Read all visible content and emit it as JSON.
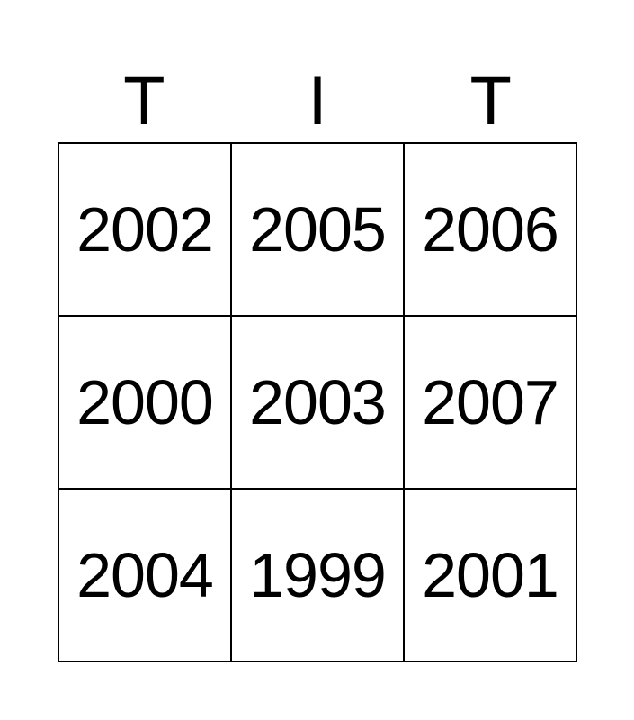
{
  "header": [
    "T",
    "I",
    "T"
  ],
  "cells": [
    [
      "2002",
      "2005",
      "2006"
    ],
    [
      "2000",
      "2003",
      "2007"
    ],
    [
      "2004",
      "1999",
      "2001"
    ]
  ]
}
